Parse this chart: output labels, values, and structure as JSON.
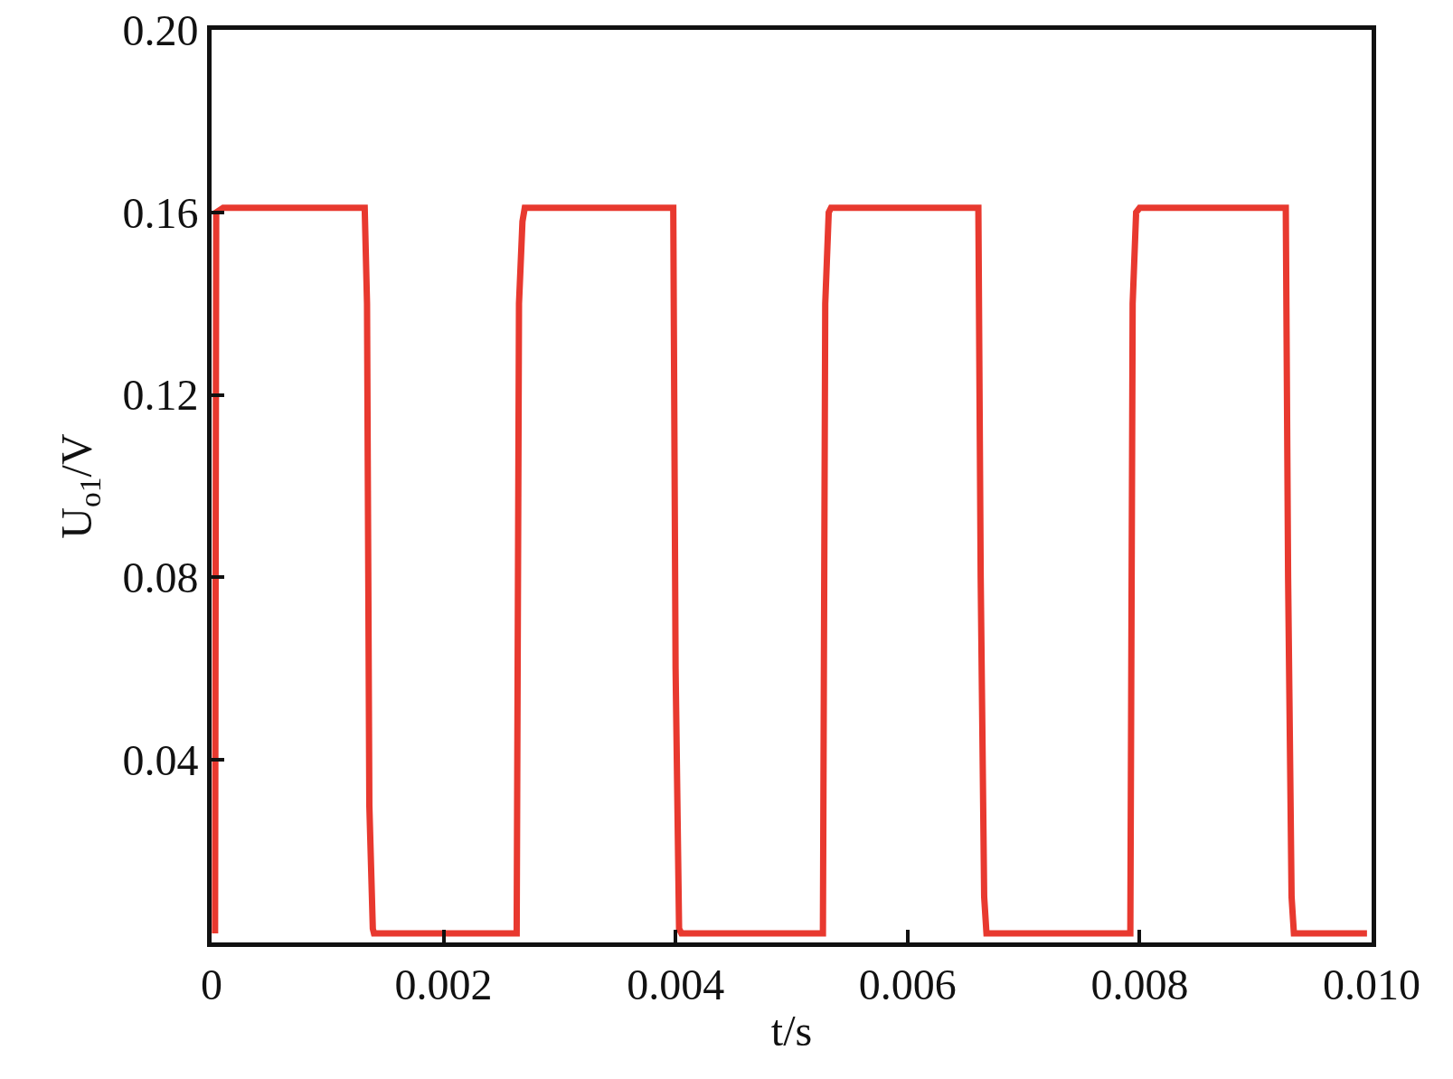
{
  "chart_data": {
    "type": "line",
    "xlabel": "t/s",
    "ylabel": "U$_{o1}$/V",
    "xlim": [
      0,
      0.01
    ],
    "ylim": [
      0,
      0.2
    ],
    "xticks": [
      0,
      0.002,
      0.004,
      0.006,
      0.008,
      {
        "value": 0.01,
        "label": "0.010"
      }
    ],
    "yticks": [
      0.04,
      0.08,
      0.12,
      0.16,
      {
        "value": 0.2,
        "label": "0.20"
      }
    ],
    "grid": false,
    "legend": false,
    "marker": "none",
    "line_style": "solid",
    "series": [
      {
        "color": "#e8392f",
        "x": [
          3e-05,
          4e-05,
          0.0001,
          0.00132,
          0.00134,
          0.00136,
          0.00139,
          0.0014,
          0.00263,
          0.00265,
          0.00268,
          0.0027,
          0.00398,
          0.004,
          0.00403,
          0.00405,
          0.00527,
          0.00529,
          0.00532,
          0.00534,
          0.00661,
          0.00663,
          0.00666,
          0.00668,
          0.00792,
          0.00794,
          0.00797,
          0.008,
          0.00926,
          0.00928,
          0.00931,
          0.00933,
          0.00996
        ],
        "values": [
          0.002,
          0.16,
          0.161,
          0.161,
          0.14,
          0.03,
          0.003,
          0.002,
          0.002,
          0.14,
          0.158,
          0.161,
          0.161,
          0.06,
          0.003,
          0.002,
          0.002,
          0.14,
          0.16,
          0.161,
          0.161,
          0.08,
          0.01,
          0.002,
          0.002,
          0.14,
          0.16,
          0.161,
          0.161,
          0.08,
          0.01,
          0.002,
          0.002
        ]
      }
    ]
  }
}
